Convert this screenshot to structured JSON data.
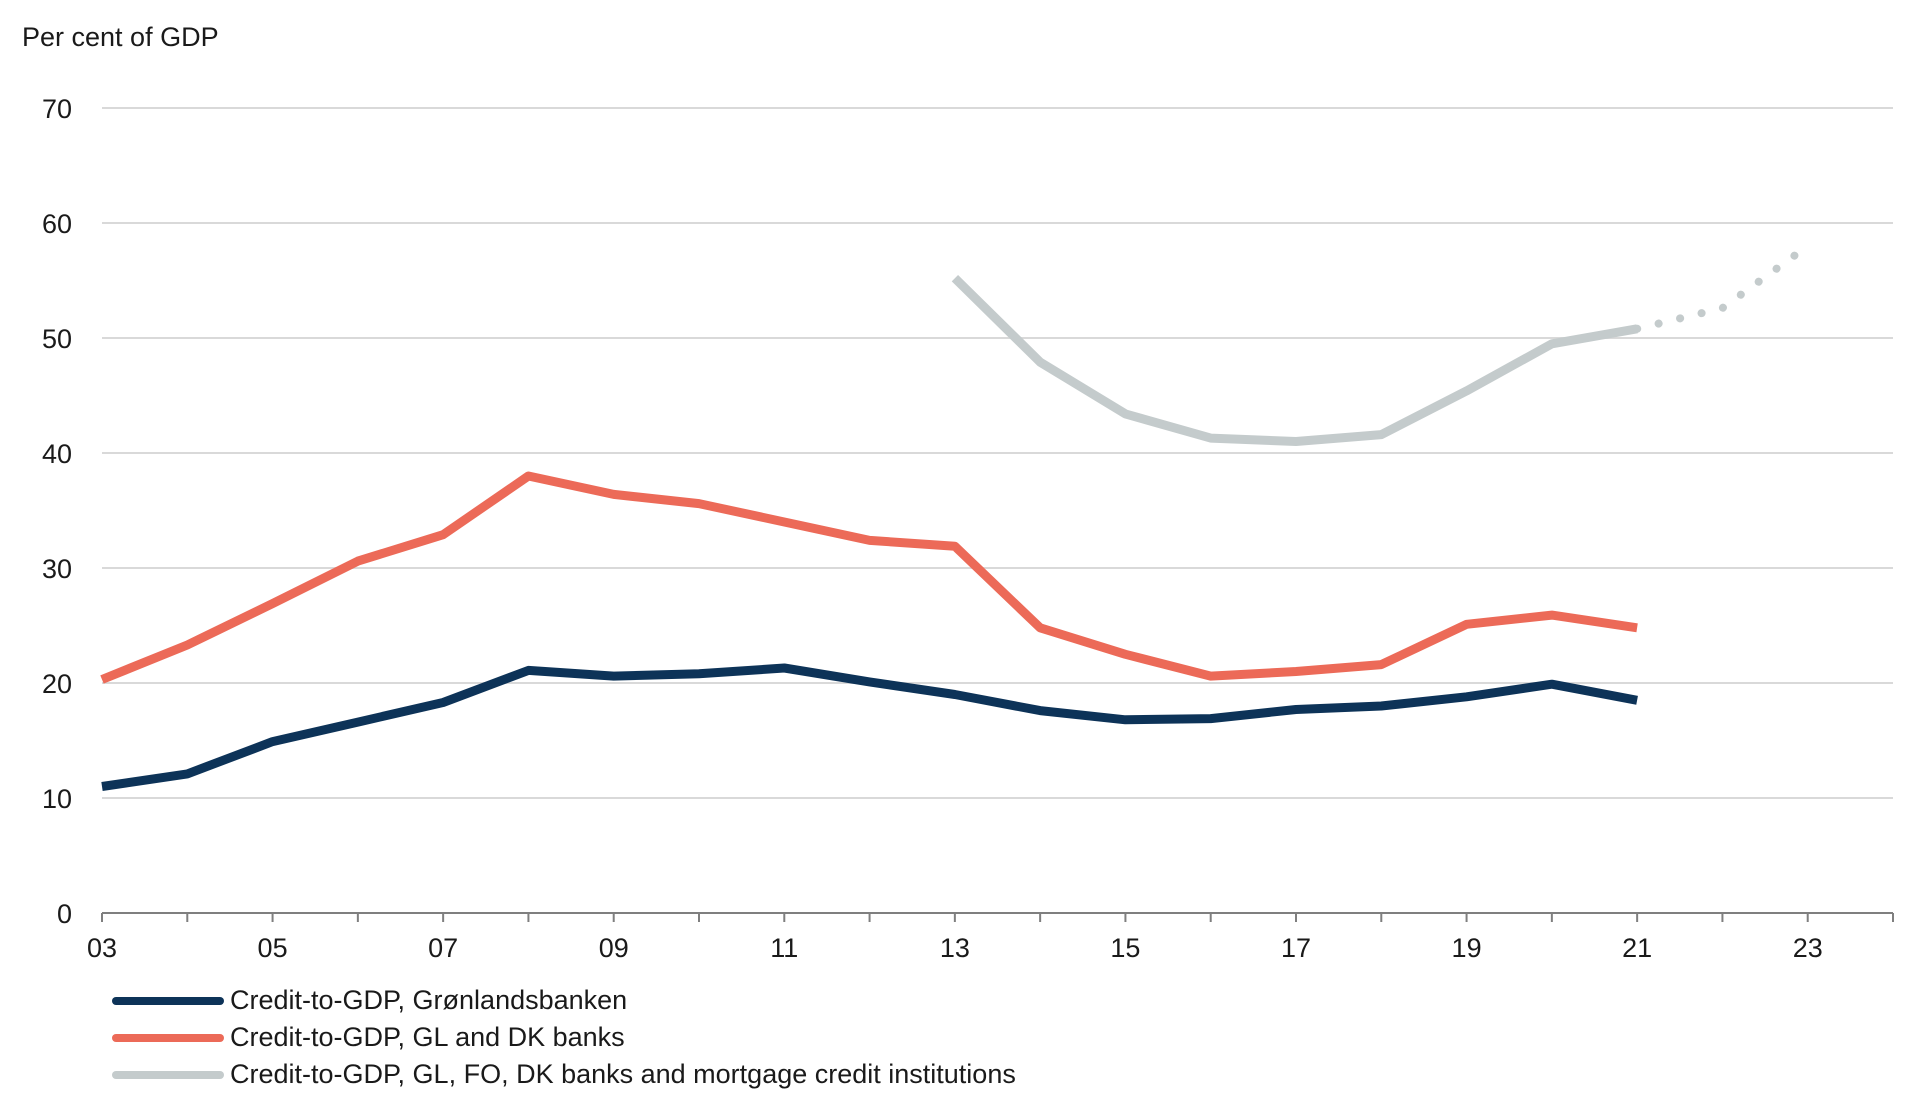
{
  "chart_data": {
    "type": "line",
    "unit_label": "Per cent of GDP",
    "ylim": [
      0,
      70
    ],
    "y_ticks": [
      0,
      10,
      20,
      30,
      40,
      50,
      60,
      70
    ],
    "y_tick_labels": [
      "0",
      "10",
      "20",
      "30",
      "40",
      "50",
      "60",
      "70"
    ],
    "xlim": [
      2003,
      2024
    ],
    "x_tick_years": [
      2003,
      2005,
      2007,
      2009,
      2011,
      2013,
      2015,
      2017,
      2019,
      2021,
      2023
    ],
    "x_tick_labels": [
      "03",
      "05",
      "07",
      "09",
      "11",
      "13",
      "15",
      "17",
      "19",
      "21",
      "23"
    ],
    "grid": true,
    "legend_position": "bottom-left",
    "series": [
      {
        "name": "Credit-to-GDP, Grønlandsbanken",
        "color": "#0d3358",
        "x": [
          2003,
          2004,
          2005,
          2006,
          2007,
          2008,
          2009,
          2010,
          2011,
          2012,
          2013,
          2014,
          2015,
          2016,
          2017,
          2018,
          2019,
          2020,
          2021
        ],
        "values": [
          11.0,
          12.1,
          14.9,
          16.6,
          18.3,
          21.1,
          20.6,
          20.8,
          21.3,
          20.1,
          19.0,
          17.6,
          16.8,
          16.9,
          17.7,
          18.0,
          18.8,
          19.9,
          18.5
        ]
      },
      {
        "name": "Credit-to-GDP, GL and DK banks",
        "color": "#ec6a58",
        "x": [
          2003,
          2004,
          2005,
          2006,
          2007,
          2008,
          2009,
          2010,
          2011,
          2012,
          2013,
          2014,
          2015,
          2016,
          2017,
          2018,
          2019,
          2020,
          2021
        ],
        "values": [
          20.3,
          23.3,
          26.9,
          30.6,
          32.9,
          38.0,
          36.4,
          35.6,
          34.0,
          32.4,
          31.9,
          24.8,
          22.5,
          20.6,
          21.0,
          21.6,
          25.1,
          25.9,
          24.8
        ]
      },
      {
        "name": "Credit-to-GDP, GL, FO, DK banks and mortgage credit institutions",
        "color": "#c4cbcc",
        "x": [
          2013,
          2014,
          2015,
          2016,
          2017,
          2018,
          2019,
          2020,
          2021
        ],
        "values": [
          55.2,
          47.9,
          43.4,
          41.3,
          41.0,
          41.6,
          45.4,
          49.5,
          50.8
        ],
        "projection": {
          "x": [
            2021,
            2022,
            2023
          ],
          "values": [
            50.8,
            52.6,
            58.0
          ]
        }
      }
    ]
  }
}
